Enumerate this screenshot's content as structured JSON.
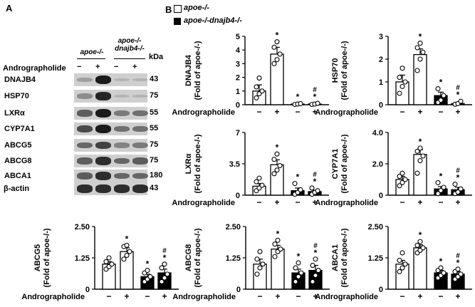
{
  "panel_labels": {
    "a": "A",
    "b": "B"
  },
  "legend": {
    "series1": "apoe-/-",
    "series2": "apoe-/-dnajb4-/-"
  },
  "blot": {
    "group1_label": "apoe-/-",
    "group2_label": "apoe-/- dnajb4-/-",
    "kda_header": "kDa",
    "treatment_label": "Andrographolide",
    "treatment_signs": [
      "−",
      "+",
      "−",
      "+"
    ],
    "rows": [
      {
        "name": "DNAJB4",
        "kda": "43",
        "intensity": [
          0.25,
          0.95,
          0.05,
          0.05
        ]
      },
      {
        "name": "HSP70",
        "kda": "75",
        "intensity": [
          0.35,
          0.9,
          0.1,
          0.05
        ]
      },
      {
        "name": "LXRα",
        "kda": "55",
        "intensity": [
          0.6,
          0.95,
          0.45,
          0.5
        ]
      },
      {
        "name": "CYP7A1",
        "kda": "55",
        "intensity": [
          0.7,
          0.95,
          0.5,
          0.5
        ]
      },
      {
        "name": "ABCG5",
        "kda": "75",
        "intensity": [
          0.55,
          0.75,
          0.4,
          0.45
        ]
      },
      {
        "name": "ABCG8",
        "kda": "75",
        "intensity": [
          0.6,
          0.85,
          0.55,
          0.6
        ]
      },
      {
        "name": "ABCA1",
        "kda": "180",
        "intensity": [
          0.6,
          0.85,
          0.55,
          0.55
        ]
      },
      {
        "name": "β-actin",
        "kda": "43",
        "intensity": [
          0.85,
          0.85,
          0.85,
          0.85
        ]
      }
    ]
  },
  "chart_data": [
    {
      "type": "bar",
      "title": "",
      "ylabel_protein": "DNAJB4",
      "ylabel_unit": "(Fold of apoe-/-)",
      "xlabel": "Andrographolide",
      "categories": [
        "−",
        "+",
        "−",
        "+"
      ],
      "values": [
        1.0,
        3.7,
        0.05,
        0.05
      ],
      "errors": [
        0.45,
        0.5,
        0.05,
        0.05
      ],
      "ylim": [
        0,
        5
      ],
      "yticks": [
        "0",
        "1",
        "2",
        "3",
        "4",
        "5"
      ],
      "ytick_values": [
        0,
        1,
        2,
        3,
        4,
        5
      ],
      "points": [
        [
          0.5,
          0.8,
          1.0,
          1.3,
          1.95
        ],
        [
          3.0,
          3.3,
          3.7,
          4.2,
          4.6
        ],
        [
          0.02,
          0.05,
          0.08
        ],
        [
          0.02,
          0.05,
          0.1
        ]
      ],
      "annotations": [
        "",
        "*",
        "*",
        "#*"
      ]
    },
    {
      "type": "bar",
      "title": "",
      "ylabel_protein": "HSP70",
      "ylabel_unit": "(Fold of apoe-/-)",
      "xlabel": "Andrographolide",
      "categories": [
        "−",
        "+",
        "−",
        "+"
      ],
      "values": [
        1.0,
        2.2,
        0.4,
        0.05
      ],
      "errors": [
        0.3,
        0.25,
        0.15,
        0.05
      ],
      "ylim": [
        0,
        3
      ],
      "yticks": [
        "0",
        "1",
        "2",
        "3"
      ],
      "ytick_values": [
        0,
        1,
        2,
        3
      ],
      "points": [
        [
          0.5,
          0.8,
          1.0,
          1.2,
          1.6
        ],
        [
          1.5,
          2.0,
          2.3,
          2.5,
          2.7
        ],
        [
          0.1,
          0.2,
          0.4,
          0.7
        ],
        [
          0.02,
          0.05,
          0.15
        ]
      ],
      "annotations": [
        "",
        "*",
        "*",
        "#*"
      ]
    },
    {
      "type": "bar",
      "title": "",
      "ylabel_protein": "LXRα",
      "ylabel_unit": "(Fold of apoe-/-)",
      "xlabel": "Andrographolide",
      "categories": [
        "−",
        "+",
        "−",
        "+"
      ],
      "values": [
        1.0,
        3.4,
        0.5,
        0.4
      ],
      "errors": [
        0.3,
        0.55,
        0.3,
        0.15
      ],
      "ylim": [
        0,
        7
      ],
      "yticks": [
        "0",
        "3.5",
        "7"
      ],
      "ytick_values": [
        0,
        3.5,
        7
      ],
      "points": [
        [
          0.5,
          0.8,
          1.1,
          1.5,
          1.9
        ],
        [
          2.4,
          2.8,
          3.3,
          4.0,
          4.6
        ],
        [
          0.1,
          0.3,
          0.6,
          1.3
        ],
        [
          0.1,
          0.3,
          0.5,
          0.8
        ]
      ],
      "annotations": [
        "",
        "*",
        "*",
        "#*"
      ]
    },
    {
      "type": "bar",
      "title": "",
      "ylabel_protein": "CYP7A1",
      "ylabel_unit": "(Fold of apoe-/-)",
      "xlabel": "Andrographolide",
      "categories": [
        "−",
        "+",
        "−",
        "+"
      ],
      "values": [
        1.0,
        2.6,
        0.4,
        0.35
      ],
      "errors": [
        0.2,
        0.3,
        0.15,
        0.15
      ],
      "ylim": [
        0,
        4
      ],
      "yticks": [
        "0",
        "2.0",
        "4.0"
      ],
      "ytick_values": [
        0,
        2,
        4
      ],
      "points": [
        [
          0.6,
          0.8,
          1.0,
          1.2,
          1.4
        ],
        [
          1.4,
          2.2,
          2.5,
          2.8,
          3.0
        ],
        [
          0.1,
          0.3,
          0.5,
          0.8
        ],
        [
          0.1,
          0.2,
          0.4,
          0.7
        ]
      ],
      "annotations": [
        "",
        "*",
        "*",
        "#*"
      ]
    },
    {
      "type": "bar",
      "title": "",
      "ylabel_protein": "ABCG5",
      "ylabel_unit": "(Fold of apoe-/-)",
      "xlabel": "Andrographolide",
      "categories": [
        "−",
        "+",
        "−",
        "+"
      ],
      "values": [
        1.0,
        1.5,
        0.5,
        0.65
      ],
      "errors": [
        0.1,
        0.15,
        0.1,
        0.15
      ],
      "ylim": [
        0,
        2.5
      ],
      "yticks": [
        "0",
        "1.25",
        "2.50"
      ],
      "ytick_values": [
        0,
        1.25,
        2.5
      ],
      "points": [
        [
          0.8,
          0.9,
          1.0,
          1.1,
          1.25
        ],
        [
          1.2,
          1.35,
          1.5,
          1.7,
          1.75
        ],
        [
          0.3,
          0.4,
          0.5,
          0.65,
          0.75
        ],
        [
          0.3,
          0.45,
          0.6,
          0.85,
          1.0
        ]
      ],
      "annotations": [
        "",
        "*",
        "*",
        "#*"
      ]
    },
    {
      "type": "bar",
      "title": "",
      "ylabel_protein": "ABCG8",
      "ylabel_unit": "(Fold of apoe-/-)",
      "xlabel": "Andrographolide",
      "categories": [
        "−",
        "+",
        "−",
        "+"
      ],
      "values": [
        1.0,
        1.6,
        0.65,
        0.75
      ],
      "errors": [
        0.2,
        0.15,
        0.15,
        0.2
      ],
      "ylim": [
        0,
        2.5
      ],
      "yticks": [
        "0",
        "1.25",
        "2.50"
      ],
      "ytick_values": [
        0,
        1.25,
        2.5
      ],
      "points": [
        [
          0.6,
          0.85,
          1.0,
          1.2,
          1.5
        ],
        [
          1.3,
          1.5,
          1.6,
          1.8,
          1.95
        ],
        [
          0.3,
          0.5,
          0.65,
          0.85,
          1.05
        ],
        [
          0.3,
          0.55,
          0.75,
          0.95,
          1.2
        ]
      ],
      "annotations": [
        "",
        "*",
        "*",
        "#*"
      ]
    },
    {
      "type": "bar",
      "title": "",
      "ylabel_protein": "ABCA1",
      "ylabel_unit": "(Fold of apoe-/-)",
      "xlabel": "Andrographolide",
      "categories": [
        "−",
        "+",
        "−",
        "+"
      ],
      "values": [
        1.0,
        1.65,
        0.65,
        0.6
      ],
      "errors": [
        0.15,
        0.12,
        0.1,
        0.1
      ],
      "ylim": [
        0,
        2.5
      ],
      "yticks": [
        "0",
        "1.25",
        "2.50"
      ],
      "ytick_values": [
        0,
        1.25,
        2.5
      ],
      "points": [
        [
          0.7,
          0.85,
          1.0,
          1.15,
          1.45
        ],
        [
          1.45,
          1.55,
          1.65,
          1.75,
          1.9
        ],
        [
          0.45,
          0.55,
          0.65,
          0.75,
          0.85
        ],
        [
          0.4,
          0.5,
          0.6,
          0.7,
          0.8
        ]
      ],
      "annotations": [
        "",
        "*",
        "*",
        "#*"
      ]
    }
  ]
}
